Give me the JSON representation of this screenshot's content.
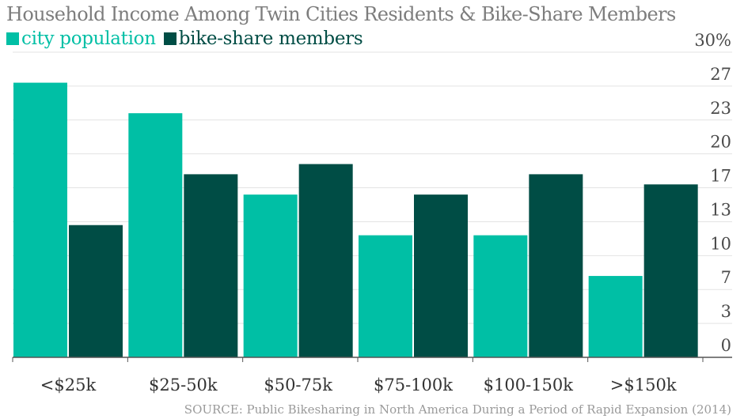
{
  "chart_data": {
    "type": "bar",
    "title": "Household Income Among Twin Cities Residents & Bike-Share Members",
    "categories": [
      "<$25k",
      "$25-50k",
      "$50-75k",
      "$75-100k",
      "$100-150k",
      ">$150k"
    ],
    "series": [
      {
        "name": "city population",
        "color": "#00bfa5",
        "values": [
          27,
          24,
          16,
          12,
          12,
          8
        ]
      },
      {
        "name": "bike-share members",
        "color": "#004d45",
        "values": [
          13,
          18,
          19,
          16,
          18,
          17
        ]
      }
    ],
    "ylim": [
      0,
      30
    ],
    "yticks": [
      "30%",
      "27",
      "23",
      "20",
      "17",
      "13",
      "10",
      "7",
      "3",
      "0"
    ],
    "grid": true,
    "xlabel": "",
    "ylabel": "",
    "source": "SOURCE: Public Bikesharing in North America During a Period of Rapid Expansion (2014)"
  }
}
